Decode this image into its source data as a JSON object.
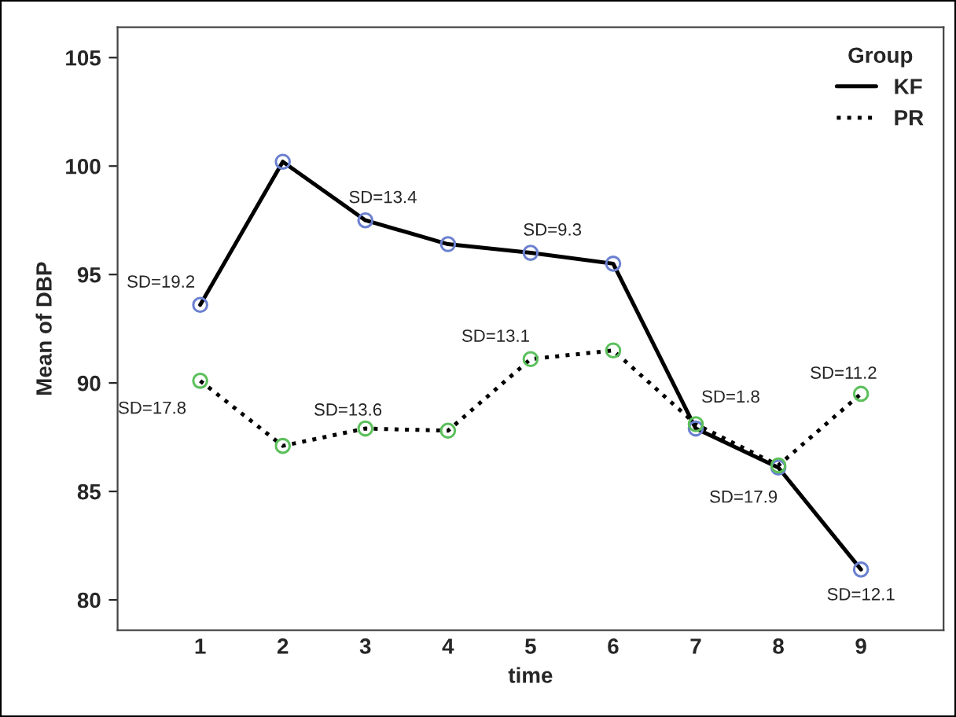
{
  "chart_data": {
    "type": "line",
    "xlabel": "time",
    "ylabel": "Mean of DBP",
    "legend_title": "Group",
    "legend": "top right",
    "grid": false,
    "marker": "circle",
    "x": [
      1,
      2,
      3,
      4,
      5,
      6,
      7,
      8,
      9
    ],
    "xlim": [
      0,
      10
    ],
    "xticks": [
      1,
      2,
      3,
      4,
      5,
      6,
      7,
      8,
      9
    ],
    "ylim": [
      78.6,
      106.4
    ],
    "yticks": [
      80,
      85,
      90,
      95,
      100,
      105
    ],
    "series": [
      {
        "name": "KF",
        "color": "#000000",
        "line_style": "solid",
        "colors": [
          "#6b80d0",
          "#6b80d0",
          "#6b80d0",
          "#6b80d0",
          "#6b80d0",
          "#6b80d0",
          "#6b80d0",
          "#6b80d0",
          "#6b80d0"
        ],
        "values": [
          93.6,
          100.2,
          97.5,
          96.4,
          96.0,
          95.5,
          87.9,
          86.1,
          81.4
        ]
      },
      {
        "name": "PR",
        "color": "#000000",
        "line_style": "dotted",
        "colors": [
          "#5cc05c",
          "#5cc05c",
          "#5cc05c",
          "#5cc05c",
          "#5cc05c",
          "#5cc05c",
          "#5cc05c",
          "#5cc05c",
          "#5cc05c"
        ],
        "values": [
          90.1,
          87.1,
          87.9,
          87.8,
          91.1,
          91.5,
          88.1,
          86.2,
          89.5
        ]
      }
    ],
    "annotations": [
      {
        "text": "SD=19.2",
        "x": 1,
        "y": 93.6
      },
      {
        "text": "SD=13.4",
        "x": 3,
        "y": 97.5
      },
      {
        "text": "SD=9.3",
        "x": 5,
        "y": 96.0
      },
      {
        "text": "SD=13.1",
        "x": 5,
        "y": 91.1
      },
      {
        "text": "SD=17.8",
        "x": 1,
        "y": 90.1
      },
      {
        "text": "SD=13.6",
        "x": 3,
        "y": 87.9
      },
      {
        "text": "SD=1.8",
        "x": 7,
        "y": 88.1
      },
      {
        "text": "SD=17.9",
        "x": 8,
        "y": 86.1
      },
      {
        "text": "SD=11.2",
        "x": 9,
        "y": 89.5
      },
      {
        "text": "SD=12.1",
        "x": 9,
        "y": 81.4
      }
    ]
  }
}
